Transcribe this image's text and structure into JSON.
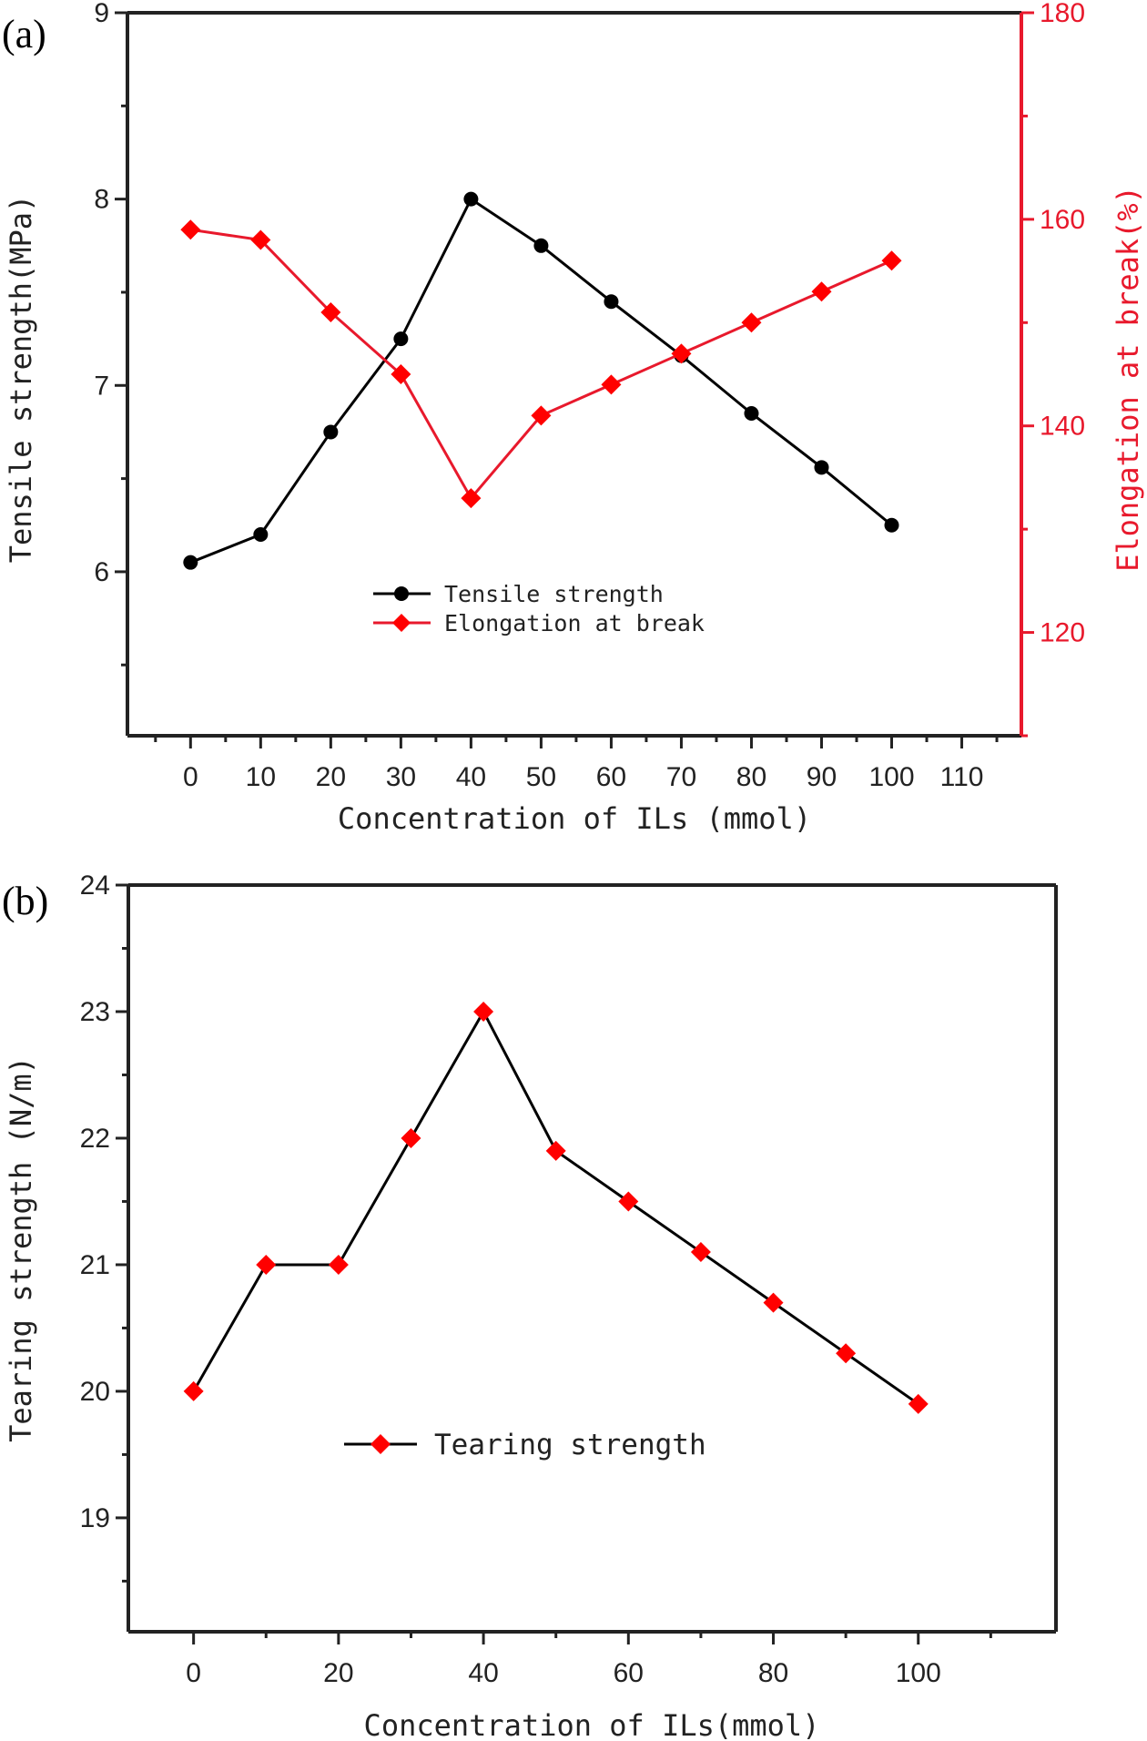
{
  "chart_data": [
    {
      "panel_label": "(a)",
      "type": "line",
      "title": "",
      "xlabel": "Concentration of ILs (mmol)",
      "ylabel": "Tensile strength(MPa)",
      "y2label": "Elongation at break(%)",
      "xlim": [
        -9,
        118.5
      ],
      "ylim": [
        5.12,
        9
      ],
      "y2lim": [
        110,
        180
      ],
      "x_ticks": [
        0,
        10,
        20,
        30,
        40,
        50,
        60,
        70,
        80,
        90,
        100,
        110
      ],
      "y_ticks": [
        6,
        7,
        8,
        9
      ],
      "y2_ticks": [
        120,
        140,
        160,
        180
      ],
      "grid": false,
      "legend_position": "center",
      "x": [
        0,
        10,
        20,
        30,
        40,
        50,
        60,
        70,
        80,
        90,
        100
      ],
      "series": [
        {
          "name": "Tensile strength",
          "axis": "left",
          "marker": "circle",
          "color": "#000000",
          "values": [
            6.05,
            6.2,
            6.75,
            7.25,
            8.0,
            7.75,
            7.45,
            7.16,
            6.85,
            6.56,
            6.25
          ]
        },
        {
          "name": "Elongation at break",
          "axis": "right",
          "marker": "diamond",
          "color": "#e8192c",
          "values": [
            159,
            158,
            151,
            145,
            133,
            141,
            144,
            147,
            150,
            153,
            156
          ]
        }
      ]
    },
    {
      "panel_label": "(b)",
      "type": "line",
      "title": "",
      "xlabel": "Concentration of ILs(mmol)",
      "ylabel": "Tearing strength (N/m)",
      "xlim": [
        -9,
        119
      ],
      "ylim": [
        18.1,
        24
      ],
      "x_ticks": [
        0,
        20,
        40,
        60,
        80,
        100
      ],
      "y_ticks": [
        19,
        20,
        21,
        22,
        23,
        24
      ],
      "grid": false,
      "legend_position": "center-left",
      "x": [
        0,
        10,
        20,
        30,
        40,
        50,
        60,
        70,
        80,
        90,
        100
      ],
      "series": [
        {
          "name": "Tearing strength",
          "axis": "left",
          "marker": "diamond",
          "line_color": "#000000",
          "marker_color": "#ff0000",
          "values": [
            20.0,
            21.0,
            21.0,
            22.0,
            23.0,
            21.9,
            21.5,
            21.1,
            20.7,
            20.3,
            19.9
          ]
        }
      ]
    }
  ]
}
